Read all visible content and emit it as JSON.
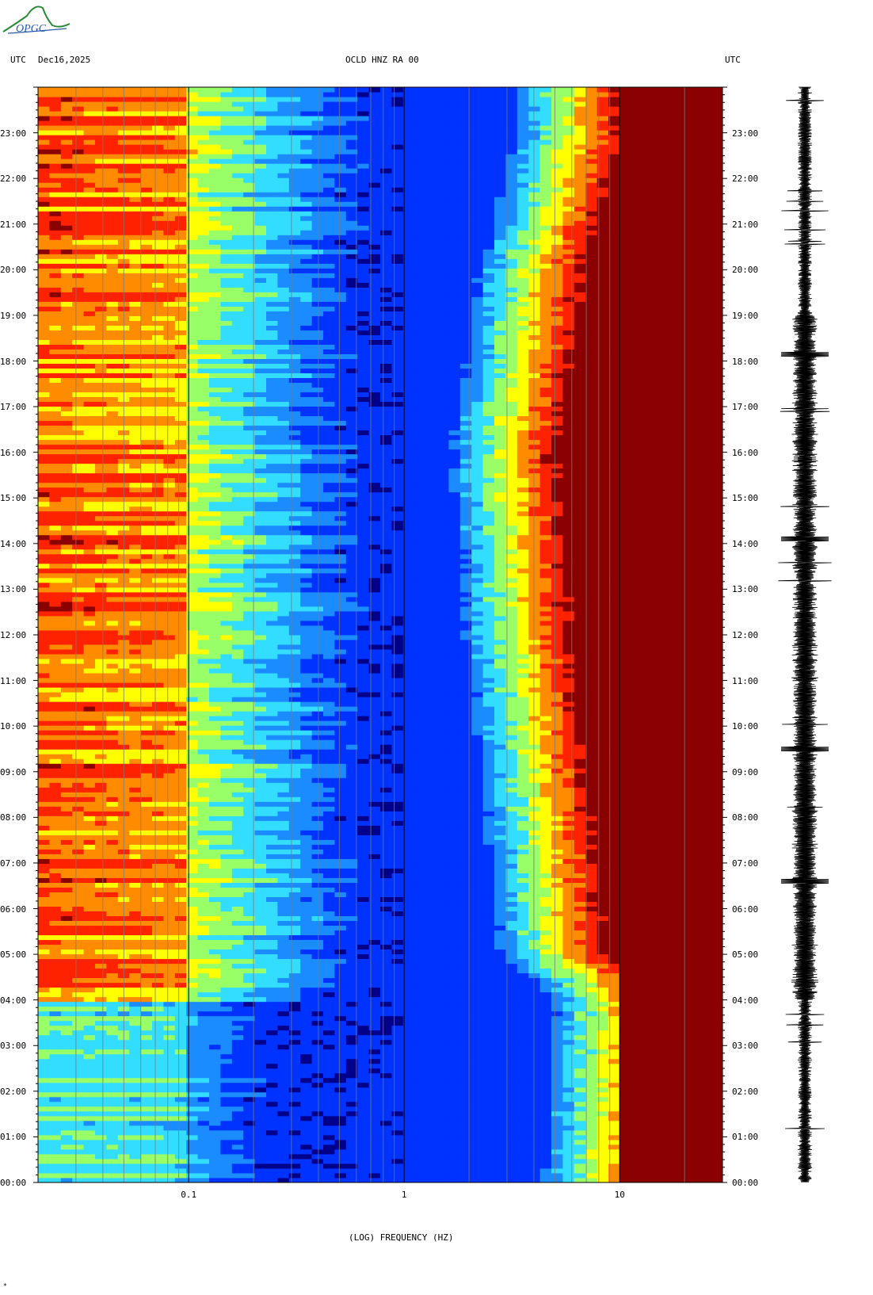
{
  "header": {
    "left_tz": "UTC",
    "date": "Dec16,2025",
    "station": "OCLD HNZ RA 00",
    "right_tz": "UTC"
  },
  "logo": {
    "text": "OPGC",
    "icon": "opgc-logo"
  },
  "footer_mark": "*",
  "colors": {
    "colormap": [
      "#00008b",
      "#0033ff",
      "#1a8cff",
      "#33ddff",
      "#99ff66",
      "#ffff00",
      "#ff8c00",
      "#ff2200",
      "#8b0000"
    ],
    "gridline": "#7a7a7a",
    "decade_line": "#000000",
    "trace": "#000000"
  },
  "chart_data": {
    "type": "heatmap",
    "title": "OCLD HNZ RA 00",
    "xlabel": "(LOG) FREQUENCY (HZ)",
    "ylabel": "",
    "x_scale": "log",
    "xlim": [
      0.02,
      30
    ],
    "x_ticks": [
      0.1,
      1,
      10
    ],
    "x_tick_labels": [
      "0.1",
      "1",
      "10"
    ],
    "ylim_hours": [
      0,
      24
    ],
    "y_tick_labels": [
      "23:00",
      "22:00",
      "21:00",
      "20:00",
      "19:00",
      "18:00",
      "17:00",
      "16:00",
      "15:00",
      "14:00",
      "13:00",
      "12:00",
      "11:00",
      "10:00",
      "09:00",
      "08:00",
      "07:00",
      "06:00",
      "05:00",
      "04:00",
      "03:00",
      "02:00",
      "01:00",
      "00:00"
    ],
    "y_tick_hours": [
      23,
      22,
      21,
      20,
      19,
      18,
      17,
      16,
      15,
      14,
      13,
      12,
      11,
      10,
      9,
      8,
      7,
      6,
      5,
      4,
      3,
      2,
      1,
      0
    ],
    "grid": true,
    "color_scale": "low=blue, high=dark red",
    "description_values": {
      "microseism_band_hz": [
        0.02,
        0.1
      ],
      "transition_frequency_hz_at_hour": [
        [
          0,
          8
        ],
        [
          4,
          9
        ],
        [
          5,
          5
        ],
        [
          12,
          3.5
        ],
        [
          16,
          3
        ],
        [
          20,
          4
        ],
        [
          23,
          6
        ]
      ],
      "saturated_above_hz": 10,
      "low_power_minimum_hz": 1
    },
    "trace": {
      "label": "waveform",
      "notable_events_hours": [
        18.15,
        14.1,
        9.5,
        6.6
      ]
    }
  }
}
